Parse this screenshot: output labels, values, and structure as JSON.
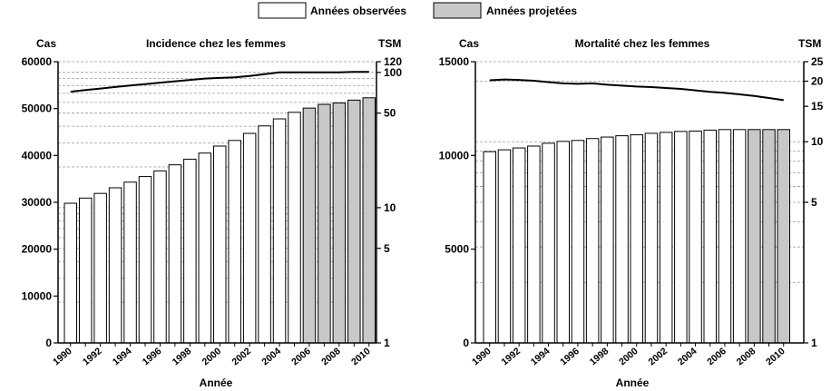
{
  "legend": {
    "observed_label": "Années observées",
    "projected_label": "Années projetées",
    "observed_color": "#ffffff",
    "projected_color": "#c8c8c8"
  },
  "chart_data": [
    {
      "type": "bar",
      "title": "Incidence chez les femmes",
      "ylabel_left": "Cas",
      "ylabel_right": "TSM",
      "xlabel": "Année",
      "right_axis_scale": "log",
      "grid": "dashed horizontal lines at right-axis (log) ticks",
      "legend_position": "top-center",
      "left_ylim": [
        0,
        60000
      ],
      "left_ticks": [
        0,
        10000,
        20000,
        30000,
        40000,
        50000,
        60000
      ],
      "right_ylim": [
        1,
        120
      ],
      "right_ticks": [
        1,
        5,
        10,
        50,
        100,
        120
      ],
      "x_ticks": [
        "1990",
        "1992",
        "1994",
        "1996",
        "1998",
        "2000",
        "2002",
        "2004",
        "2006",
        "2008",
        "2010"
      ],
      "categories": [
        "1990",
        "1991",
        "1992",
        "1993",
        "1994",
        "1995",
        "1996",
        "1997",
        "1998",
        "1999",
        "2000",
        "2001",
        "2002",
        "2003",
        "2004",
        "2005",
        "2006",
        "2007",
        "2008",
        "2009",
        "2010"
      ],
      "series": [
        {
          "name": "Cas",
          "kind": "bar",
          "values": [
            29800,
            30900,
            31900,
            33100,
            34300,
            35500,
            36700,
            38000,
            39200,
            40500,
            42000,
            43200,
            44700,
            46300,
            47800,
            49200,
            50100,
            50900,
            51200,
            51800,
            52300
          ],
          "projected_from": "2006"
        },
        {
          "name": "TSM",
          "kind": "line",
          "values": [
            72,
            74,
            76,
            78,
            80,
            82,
            84,
            86,
            88,
            90,
            91,
            92,
            94,
            97,
            100,
            100,
            100,
            100,
            100,
            101,
            101
          ]
        }
      ]
    },
    {
      "type": "bar",
      "title": "Mortalité chez les femmes",
      "ylabel_left": "Cas",
      "ylabel_right": "TSM",
      "xlabel": "Année",
      "right_axis_scale": "log",
      "grid": "dashed horizontal lines at right-axis (log) ticks",
      "left_ylim": [
        0,
        15000
      ],
      "left_ticks": [
        0,
        5000,
        10000,
        15000
      ],
      "right_ylim": [
        1,
        25
      ],
      "right_ticks": [
        1,
        5,
        10,
        15,
        20,
        25
      ],
      "x_ticks": [
        "1990",
        "1992",
        "1994",
        "1996",
        "1998",
        "2000",
        "2002",
        "2004",
        "2006",
        "2008",
        "2010"
      ],
      "categories": [
        "1990",
        "1991",
        "1992",
        "1993",
        "1994",
        "1995",
        "1996",
        "1997",
        "1998",
        "1999",
        "2000",
        "2001",
        "2002",
        "2003",
        "2004",
        "2005",
        "2006",
        "2007",
        "2008",
        "2009",
        "2010"
      ],
      "series": [
        {
          "name": "Cas",
          "kind": "bar",
          "values": [
            10200,
            10300,
            10400,
            10500,
            10650,
            10750,
            10800,
            10900,
            10980,
            11050,
            11100,
            11180,
            11230,
            11280,
            11300,
            11350,
            11380,
            11380,
            11380,
            11380,
            11380
          ],
          "projected_from": "2008"
        },
        {
          "name": "TSM",
          "kind": "line",
          "values": [
            20.2,
            20.4,
            20.3,
            20.1,
            19.8,
            19.5,
            19.4,
            19.5,
            19.2,
            19.0,
            18.8,
            18.7,
            18.5,
            18.3,
            18.0,
            17.7,
            17.5,
            17.2,
            16.9,
            16.5,
            16.1
          ]
        }
      ]
    }
  ]
}
